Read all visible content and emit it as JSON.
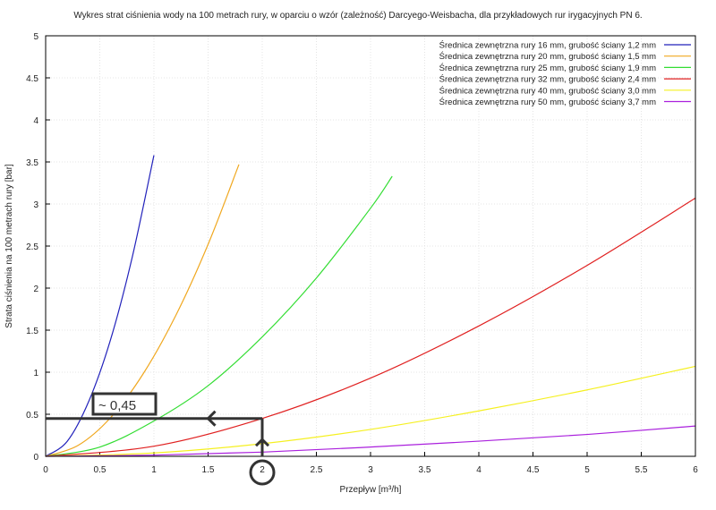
{
  "chart_data": {
    "type": "line",
    "title": "Wykres strat ciśnienia wody na 100 metrach rury, w oparciu o wzór (zależność) Darcyego-Weisbacha, dla przykładowych rur irygacyjnych PN 6.",
    "xlabel": "Przepływ [m³/h]",
    "ylabel": "Strata ciśnienia na 100 metrach rury [bar]",
    "xlim": [
      0,
      6
    ],
    "ylim": [
      0,
      5
    ],
    "grid": true,
    "legend_position": "top-right",
    "xticks": [
      "0",
      "0.5",
      "1",
      "1.5",
      "2",
      "2.5",
      "3",
      "3.5",
      "4",
      "4.5",
      "5",
      "5.5",
      "6"
    ],
    "yticks": [
      "0",
      "0.5",
      "1",
      "1.5",
      "2",
      "2.5",
      "3",
      "3.5",
      "4",
      "4.5",
      "5"
    ],
    "series": [
      {
        "name": "Średnica zewnętrzna rury 16 mm, grubość ściany 1,2 mm",
        "color": "#2222bb",
        "x": [
          0,
          0.2,
          0.4,
          0.6,
          0.8,
          1.0
        ],
        "y": [
          0,
          0.18,
          0.66,
          1.39,
          2.37,
          3.58
        ]
      },
      {
        "name": "Średnica zewnętrzna rury 20 mm, grubość ściany 1,5 mm",
        "color": "#f0a820",
        "x": [
          0,
          0.3,
          0.6,
          0.9,
          1.2,
          1.5,
          1.785
        ],
        "y": [
          0,
          0.13,
          0.46,
          0.98,
          1.67,
          2.52,
          3.47
        ]
      },
      {
        "name": "Średnica zewnętrzna rury 25 mm, grubość ściany 1,9 mm",
        "color": "#33dd33",
        "x": [
          0,
          0.5,
          1,
          1.5,
          2,
          2.5,
          3,
          3.2
        ],
        "y": [
          0,
          0.11,
          0.42,
          0.84,
          1.42,
          2.12,
          2.95,
          3.33
        ]
      },
      {
        "name": "Średnica zewnętrzna rury 32 mm, grubość ściany 2,4 mm",
        "color": "#e02020",
        "x": [
          0,
          1,
          2,
          3,
          4,
          5,
          6
        ],
        "y": [
          0,
          0.12,
          0.45,
          0.93,
          1.55,
          2.27,
          3.07
        ]
      },
      {
        "name": "Średnica zewnętrzna rury 40 mm, grubość ściany 3,0 mm",
        "color": "#f5f020",
        "x": [
          0,
          1,
          2,
          3,
          4,
          5,
          6
        ],
        "y": [
          0,
          0.04,
          0.15,
          0.32,
          0.54,
          0.79,
          1.07
        ]
      },
      {
        "name": "Średnica zewnętrzna rury 50 mm, grubość ściany 3,7 mm",
        "color": "#aa20dd",
        "x": [
          0,
          1,
          2,
          3,
          4,
          5,
          6
        ],
        "y": [
          0,
          0.014,
          0.05,
          0.11,
          0.18,
          0.26,
          0.36
        ]
      }
    ],
    "annotation": {
      "label": "~ 0,45",
      "x": 2,
      "y": 0.45,
      "circled_tick": "2"
    }
  }
}
